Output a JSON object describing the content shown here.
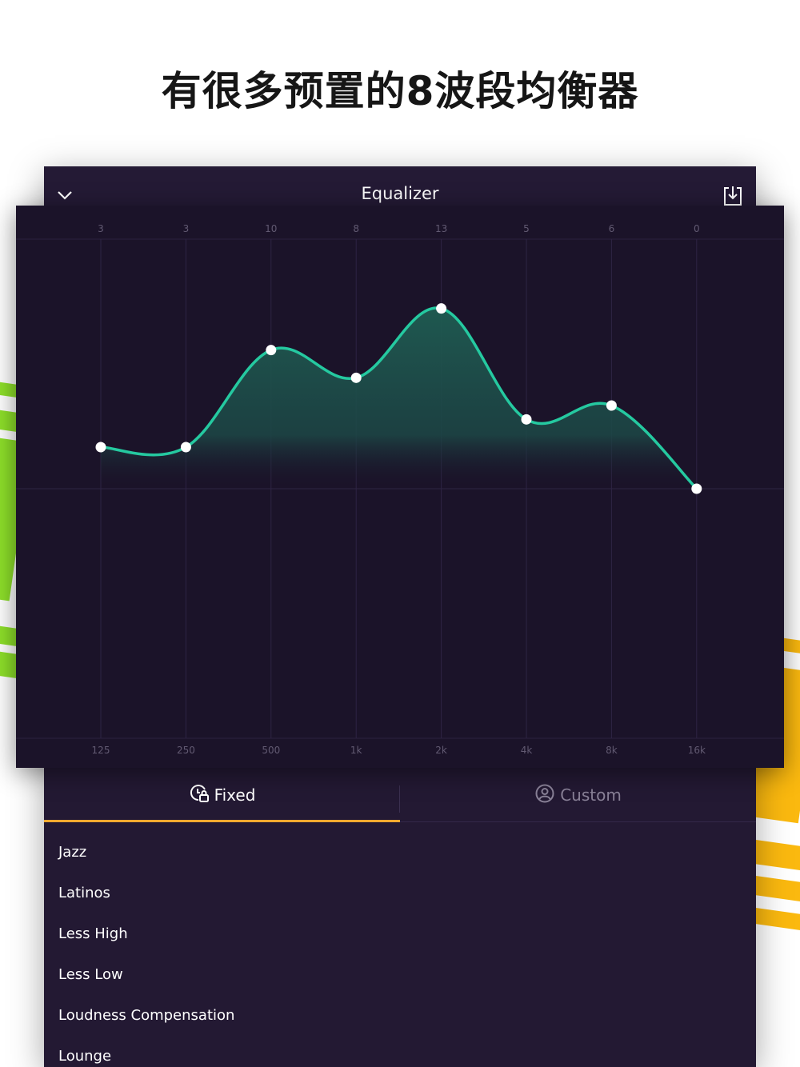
{
  "promo": {
    "title": "有很多预置的8波段均衡器"
  },
  "colors": {
    "background": "#ffffff",
    "app_bg": "#231933",
    "chart_bg": "#1b1329",
    "curve": "#25c9a0",
    "accent_underline": "#f3a92f",
    "stripe_green": "#8ee02a",
    "stripe_yellow": "#fbb90f"
  },
  "nav": {
    "title": "Equalizer",
    "left_icon": "chevron-down-icon",
    "right_icon": "download-tray-icon"
  },
  "chart_data": {
    "type": "line",
    "categories": [
      "125",
      "250",
      "500",
      "1k",
      "2k",
      "4k",
      "8k",
      "16k"
    ],
    "values": [
      3,
      3,
      10,
      8,
      13,
      5,
      6,
      0
    ],
    "value_labels": [
      "3",
      "3",
      "10",
      "8",
      "13",
      "5",
      "6",
      "0"
    ],
    "ylim": [
      -18,
      18
    ],
    "grid": true,
    "fill": "area under curve above zero line"
  },
  "tabs": [
    {
      "label": "Fixed",
      "icon": "lock-clock-icon",
      "active": true
    },
    {
      "label": "Custom",
      "icon": "user-circle-icon",
      "active": false
    }
  ],
  "presets": [
    "Jazz",
    "Latinos",
    "Less High",
    "Less Low",
    "Loudness Compensation",
    "Lounge"
  ]
}
